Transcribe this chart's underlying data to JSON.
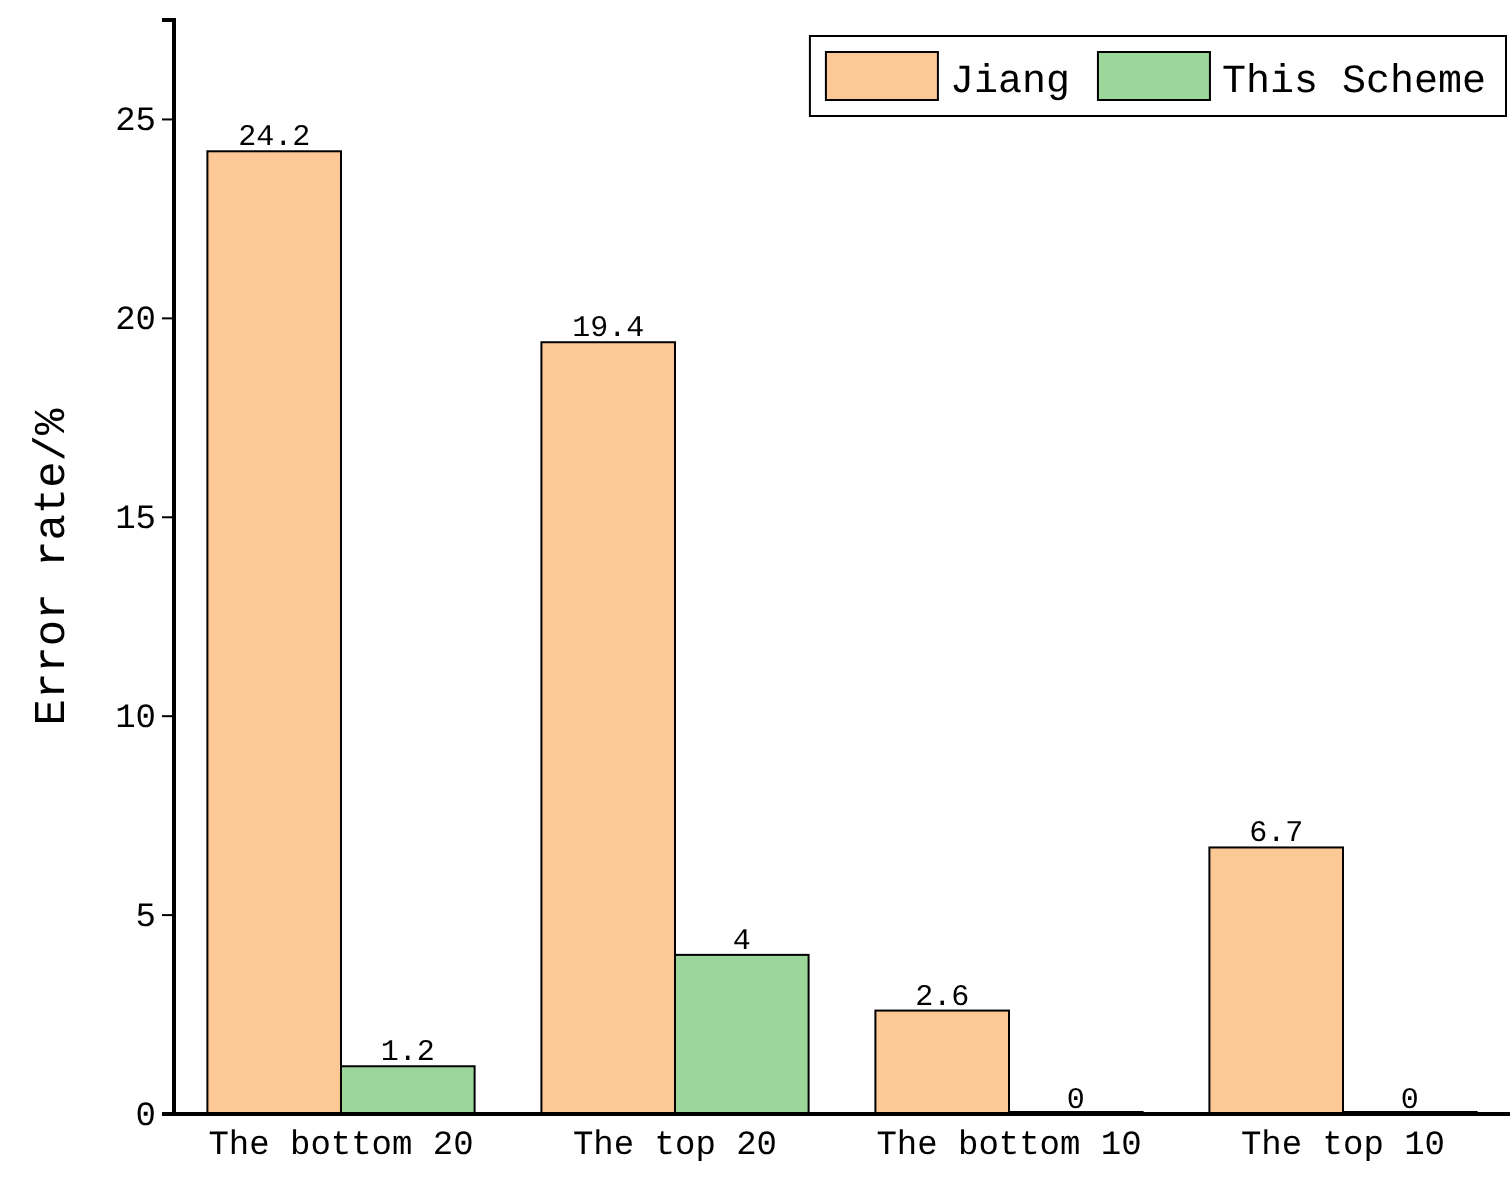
{
  "chart_data": {
    "type": "bar",
    "ylabel": "Error rate/%",
    "categories": [
      "The bottom 20",
      "The top 20",
      "The bottom 10",
      "The top 10"
    ],
    "series": [
      {
        "name": "Jiang",
        "color": "#fcc896",
        "values": [
          24.2,
          19.4,
          2.6,
          6.7
        ]
      },
      {
        "name": "This Scheme",
        "color": "#9dd69b",
        "values": [
          1.2,
          4,
          0,
          0
        ]
      }
    ],
    "ylim": [
      0,
      27.5
    ],
    "yticks": [
      0,
      5,
      10,
      15,
      20,
      25
    ],
    "data_labels": true,
    "legend": "top right",
    "grid": false
  }
}
